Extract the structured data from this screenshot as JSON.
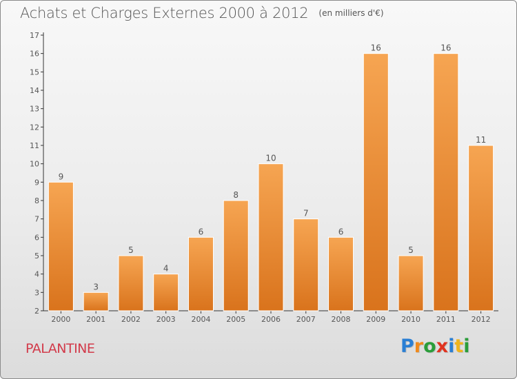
{
  "header": {
    "title": "Achats et Charges Externes 2000 à 2012",
    "unit": "(en milliers d'€)"
  },
  "footer": {
    "commune": "PALANTINE",
    "logo_letters": [
      "P",
      "r",
      "o",
      "x",
      "i",
      "t",
      "i"
    ],
    "logo_colors": [
      "#2a7fd4",
      "#f08a1c",
      "#2a9d3a",
      "#e0331f",
      "#2a7fd4",
      "#f0b41c",
      "#2a9d3a"
    ]
  },
  "colors": {
    "bar_top": "#f6a552",
    "bar_bottom": "#d9731c",
    "axis": "#333333"
  },
  "chart_data": {
    "type": "bar",
    "title": "Achats et Charges Externes 2000 à 2012",
    "subtitle": "(en milliers d'€)",
    "xlabel": "",
    "ylabel": "",
    "categories": [
      "2000",
      "2001",
      "2002",
      "2003",
      "2004",
      "2005",
      "2006",
      "2007",
      "2008",
      "2009",
      "2010",
      "2011",
      "2012"
    ],
    "values": [
      9,
      3,
      5,
      4,
      6,
      8,
      10,
      7,
      6,
      16,
      5,
      16,
      11
    ],
    "ylim": [
      2,
      17
    ],
    "yticks": [
      2,
      3,
      4,
      5,
      6,
      7,
      8,
      9,
      10,
      11,
      12,
      13,
      14,
      15,
      16,
      17
    ],
    "data_labels": true,
    "grid": false,
    "legend": "none"
  }
}
